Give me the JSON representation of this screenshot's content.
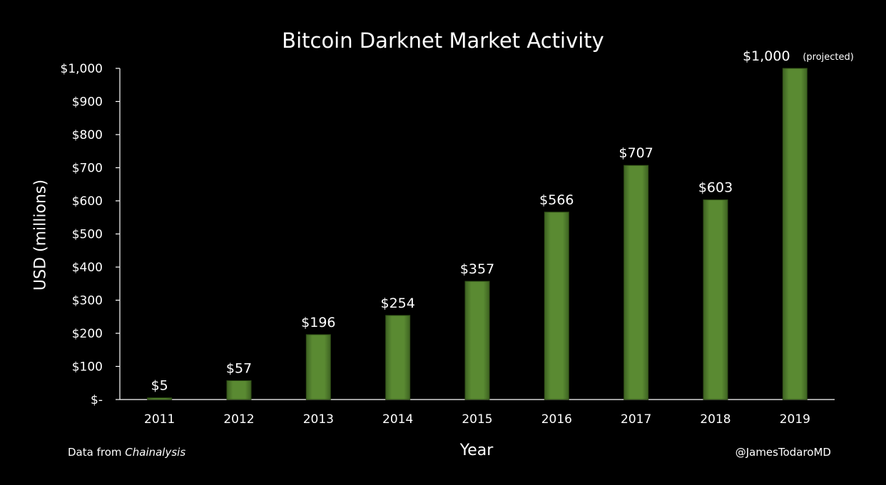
{
  "chart_data": {
    "type": "bar",
    "title": "Bitcoin Darknet Market Activity",
    "xlabel": "Year",
    "ylabel": "USD (millions)",
    "categories": [
      "2011",
      "2012",
      "2013",
      "2014",
      "2015",
      "2016",
      "2017",
      "2018",
      "2019"
    ],
    "values": [
      5,
      57,
      196,
      254,
      357,
      566,
      707,
      603,
      1000
    ],
    "data_labels": [
      "$5",
      "$57",
      "$196",
      "$254",
      "$357",
      "$566",
      "$707",
      "$603",
      "$1,000"
    ],
    "annotations": [
      {
        "category": "2019",
        "text": "(projected)"
      }
    ],
    "ylim": [
      0,
      1000
    ],
    "yticks": [
      0,
      100,
      200,
      300,
      400,
      500,
      600,
      700,
      800,
      900,
      1000
    ],
    "ytick_labels": [
      "$-",
      "$100",
      "$200",
      "$300",
      "$400",
      "$500",
      "$600",
      "$700",
      "$800",
      "$900",
      "$1,000"
    ],
    "grid": false,
    "legend": "none",
    "colors": {
      "background": "#000000",
      "bar": "#5a8a32",
      "bar_edge": "#2f4d16",
      "text": "#ffffff",
      "axis": "#ffffff"
    }
  },
  "footer": {
    "source_prefix": "Data from ",
    "source_name": "Chainalysis",
    "handle": "@JamesTodaroMD"
  }
}
